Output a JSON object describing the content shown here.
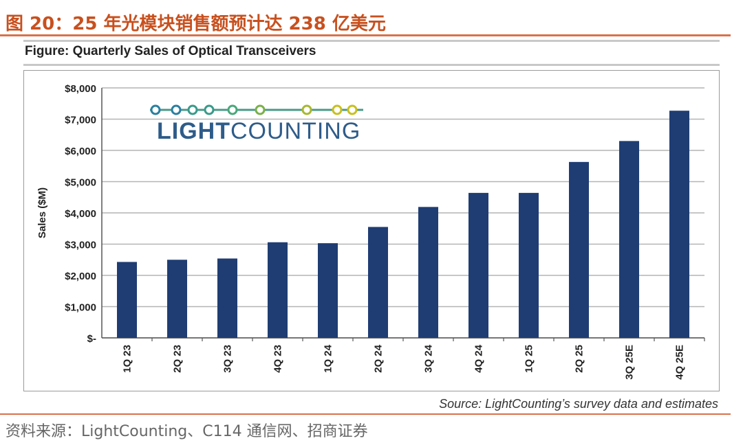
{
  "header": {
    "report_title": "图 20：25 年光模块销售额预计达 238 亿美元",
    "figure_title": "Figure: Quarterly Sales of Optical Transceivers"
  },
  "logo": {
    "text_bold": "LIGHT",
    "text_regular": "COUNTING",
    "brand_color": "#2e5c8a",
    "dot_colors": [
      "#2a7fa0",
      "#3a9a8a",
      "#4aa87a",
      "#7ab04a",
      "#a8b830",
      "#c8c020"
    ]
  },
  "footer": {
    "chart_source": "Source: LightCounting’s survey data and estimates",
    "data_source": "资料来源：LightCounting、C114 通信网、招商证券"
  },
  "chart_data": {
    "type": "bar",
    "categories": [
      "1Q 23",
      "2Q 23",
      "3Q 23",
      "4Q 23",
      "1Q 24",
      "2Q 24",
      "3Q 24",
      "4Q 24",
      "1Q 25",
      "2Q 25",
      "3Q 25E",
      "4Q 25E"
    ],
    "series": [
      {
        "name": "Sales",
        "values": [
          2430,
          2500,
          2540,
          3060,
          3030,
          3550,
          4190,
          4640,
          4640,
          5630,
          6300,
          7270
        ]
      }
    ],
    "ylabel": "Sales ($M)",
    "xlabel": "",
    "ylim": [
      0,
      8000
    ],
    "yticks": [
      0,
      1000,
      2000,
      3000,
      4000,
      5000,
      6000,
      7000,
      8000
    ],
    "ytick_labels": [
      "$-",
      "$1,000",
      "$2,000",
      "$3,000",
      "$4,000",
      "$5,000",
      "$6,000",
      "$7,000",
      "$8,000"
    ],
    "bar_color": "#1f3d73",
    "grid": true
  }
}
